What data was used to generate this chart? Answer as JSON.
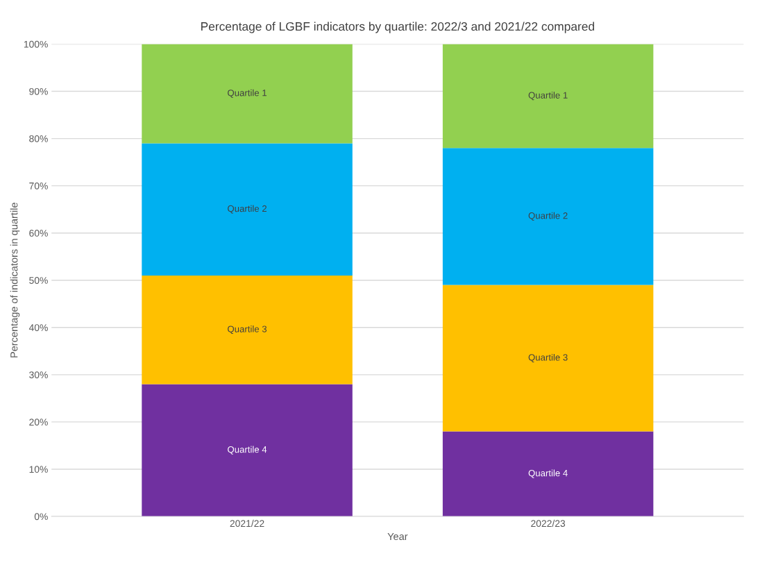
{
  "chart_data": {
    "type": "bar",
    "stacked": true,
    "title": "Percentage of LGBF indicators by quartile: 2022/3 and 2021/22 compared",
    "xlabel": "Year",
    "ylabel": "Percentage of indicators in quartile",
    "categories": [
      "2021/22",
      "2022/23"
    ],
    "series": [
      {
        "name": "Quartile 4",
        "color": "#7030a0",
        "values": [
          28,
          18
        ]
      },
      {
        "name": "Quartile 3",
        "color": "#ffc000",
        "values": [
          23,
          31
        ]
      },
      {
        "name": "Quartile 2",
        "color": "#00b0f0",
        "values": [
          28,
          29
        ]
      },
      {
        "name": "Quartile 1",
        "color": "#92d050",
        "values": [
          21,
          22
        ]
      }
    ],
    "ylim": [
      0,
      100
    ],
    "yticks": [
      {
        "value": 0,
        "label": "0%"
      },
      {
        "value": 10,
        "label": "10%"
      },
      {
        "value": 20,
        "label": "20%"
      },
      {
        "value": 30,
        "label": "30%"
      },
      {
        "value": 40,
        "label": "40%"
      },
      {
        "value": 50,
        "label": "50%"
      },
      {
        "value": 60,
        "label": "60%"
      },
      {
        "value": 70,
        "label": "70%"
      },
      {
        "value": 80,
        "label": "80%"
      },
      {
        "value": 90,
        "label": "90%"
      },
      {
        "value": 100,
        "label": "100%"
      }
    ],
    "grid": "y",
    "legend": false
  }
}
